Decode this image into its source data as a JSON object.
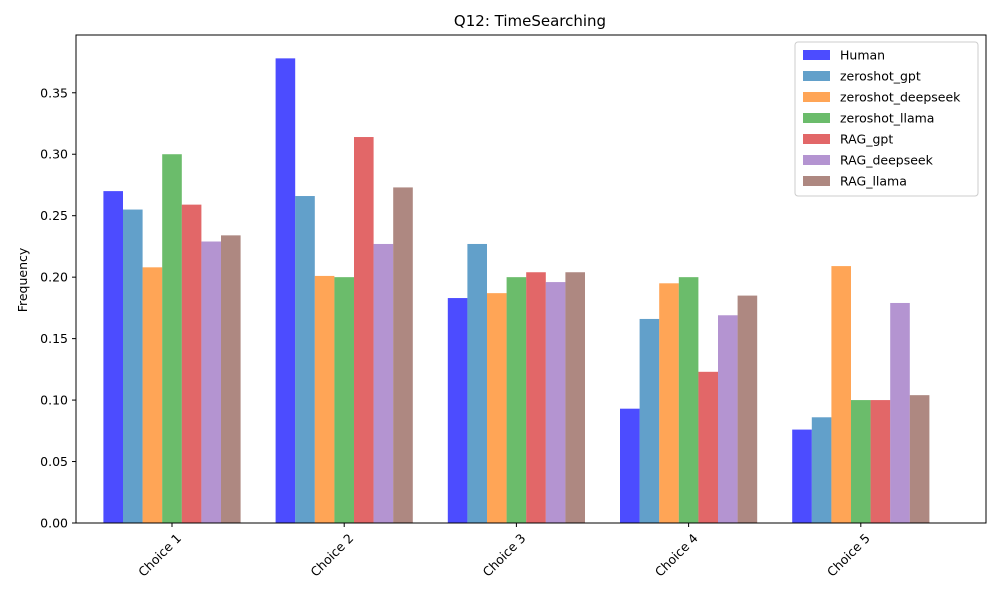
{
  "chart_data": {
    "type": "bar",
    "title": "Q12: TimeSearching",
    "xlabel": "",
    "ylabel": "Frequency",
    "ylim": [
      0,
      0.397
    ],
    "yticks": [
      "0.00",
      "0.05",
      "0.10",
      "0.15",
      "0.20",
      "0.25",
      "0.30",
      "0.35"
    ],
    "categories": [
      "Choice 1",
      "Choice 2",
      "Choice 3",
      "Choice 4",
      "Choice 5"
    ],
    "legend_position": "top-right",
    "grid": false,
    "series": [
      {
        "name": "Human",
        "color": "#0000ff",
        "values": [
          0.27,
          0.378,
          0.183,
          0.093,
          0.076
        ]
      },
      {
        "name": "zeroshot_gpt",
        "color": "#1f77b4",
        "values": [
          0.255,
          0.266,
          0.227,
          0.166,
          0.086
        ]
      },
      {
        "name": "zeroshot_deepseek",
        "color": "#ff7f0e",
        "values": [
          0.208,
          0.201,
          0.187,
          0.195,
          0.209
        ]
      },
      {
        "name": "zeroshot_llama",
        "color": "#2ca02c",
        "values": [
          0.3,
          0.2,
          0.2,
          0.2,
          0.1
        ]
      },
      {
        "name": "RAG_gpt",
        "color": "#d62728",
        "values": [
          0.259,
          0.314,
          0.204,
          0.123,
          0.1
        ]
      },
      {
        "name": "RAG_deepseek",
        "color": "#9467bd",
        "values": [
          0.229,
          0.227,
          0.196,
          0.169,
          0.179
        ]
      },
      {
        "name": "RAG_llama",
        "color": "#8c564b",
        "values": [
          0.234,
          0.273,
          0.204,
          0.185,
          0.104
        ]
      }
    ]
  }
}
